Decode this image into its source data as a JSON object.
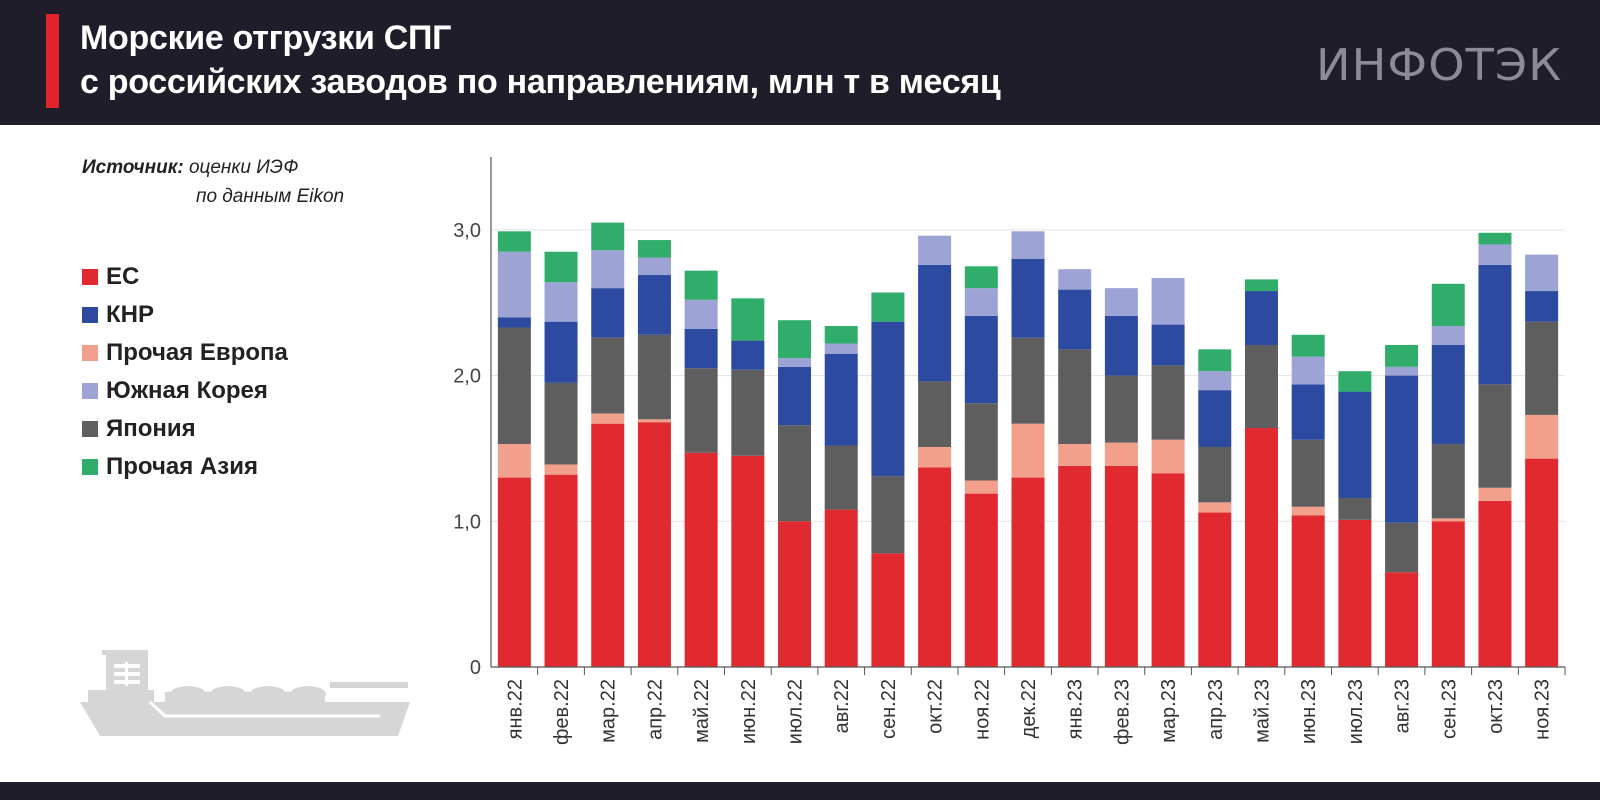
{
  "header": {
    "title_line1": "Морские отгрузки СПГ",
    "title_line2": "с российских заводов по направлениям, млн т в месяц",
    "logo_text": "ИНФОТЭК"
  },
  "source": {
    "label": "Источник:",
    "line1": "оценки ИЭФ",
    "line2": "по данным Eikon"
  },
  "colors": {
    "header_bg": "#201d2b",
    "accent": "#e1242c"
  },
  "legend": [
    {
      "label": "ЕС",
      "color": "#e12a2f"
    },
    {
      "label": "КНР",
      "color": "#2c4aa0"
    },
    {
      "label": "Прочая Европа",
      "color": "#f2a08c"
    },
    {
      "label": "Южная Корея",
      "color": "#9ea3d6"
    },
    {
      "label": "Япония",
      "color": "#5f5e5e"
    },
    {
      "label": "Прочая Азия",
      "color": "#30ad6b"
    }
  ],
  "chart_data": {
    "type": "bar",
    "stacked": true,
    "title": "Морские отгрузки СПГ с российских заводов по направлениям, млн т в месяц",
    "ylim": [
      0,
      3.5
    ],
    "yticks": [
      "0",
      "1,0",
      "2,0",
      "3,0"
    ],
    "ytick_values": [
      0,
      1,
      2,
      3
    ],
    "categories": [
      "янв.22",
      "фев.22",
      "мар.22",
      "апр.22",
      "май.22",
      "июн.22",
      "июл.22",
      "авг.22",
      "сен.22",
      "окт.22",
      "ноя.22",
      "дек.22",
      "янв.23",
      "фев.23",
      "мар.23",
      "апр.23",
      "май.23",
      "июн.23",
      "июл.23",
      "авг.23",
      "сен.23",
      "окт.23",
      "ноя.23"
    ],
    "series": [
      {
        "name": "ЕС",
        "color": "#e12a2f",
        "values": [
          1.3,
          1.32,
          1.67,
          1.68,
          1.47,
          1.45,
          1.0,
          1.08,
          0.78,
          1.37,
          1.19,
          1.3,
          1.38,
          1.38,
          1.33,
          1.06,
          1.64,
          1.04,
          1.01,
          0.65,
          1.0,
          1.14,
          1.43
        ]
      },
      {
        "name": "Прочая Европа",
        "color": "#f2a08c",
        "values": [
          0.23,
          0.07,
          0.07,
          0.02,
          0.0,
          0.0,
          0.0,
          0.0,
          0.0,
          0.14,
          0.09,
          0.37,
          0.15,
          0.16,
          0.23,
          0.07,
          0.0,
          0.06,
          0.0,
          0.0,
          0.02,
          0.09,
          0.3
        ]
      },
      {
        "name": "Япония",
        "color": "#5f5e5e",
        "values": [
          0.8,
          0.56,
          0.52,
          0.58,
          0.58,
          0.59,
          0.66,
          0.44,
          0.53,
          0.45,
          0.53,
          0.59,
          0.65,
          0.46,
          0.51,
          0.38,
          0.57,
          0.46,
          0.15,
          0.34,
          0.51,
          0.71,
          0.64
        ]
      },
      {
        "name": "КНР",
        "color": "#2c4aa0",
        "values": [
          0.07,
          0.42,
          0.34,
          0.41,
          0.27,
          0.2,
          0.4,
          0.63,
          1.06,
          0.8,
          0.6,
          0.54,
          0.41,
          0.41,
          0.28,
          0.39,
          0.37,
          0.38,
          0.73,
          1.01,
          0.68,
          0.82,
          0.21
        ]
      },
      {
        "name": "Южная Корея",
        "color": "#9ea3d6",
        "values": [
          0.45,
          0.27,
          0.26,
          0.12,
          0.2,
          0.0,
          0.06,
          0.07,
          0.0,
          0.2,
          0.19,
          0.19,
          0.14,
          0.19,
          0.32,
          0.13,
          0.0,
          0.19,
          0.0,
          0.06,
          0.13,
          0.14,
          0.25
        ]
      },
      {
        "name": "Прочая Азия",
        "color": "#30ad6b",
        "values": [
          0.14,
          0.21,
          0.19,
          0.12,
          0.2,
          0.29,
          0.26,
          0.12,
          0.2,
          0.0,
          0.15,
          0.0,
          0.0,
          0.0,
          0.0,
          0.15,
          0.08,
          0.15,
          0.14,
          0.15,
          0.29,
          0.08,
          0.0
        ]
      }
    ]
  }
}
